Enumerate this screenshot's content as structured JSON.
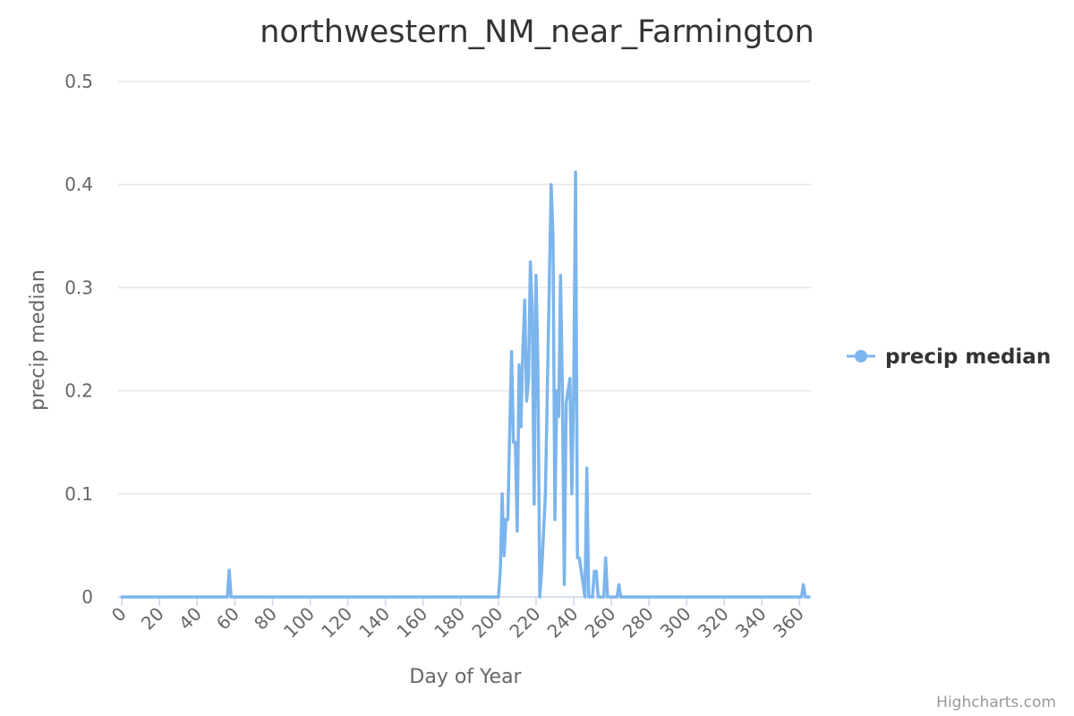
{
  "chart_data": {
    "type": "line",
    "title": "northwestern_NM_near_Farmington",
    "xlabel": "Day of Year",
    "ylabel": "precip median",
    "xlim": [
      -2,
      366
    ],
    "ylim": [
      0,
      0.5
    ],
    "x_ticks": [
      0,
      20,
      40,
      60,
      80,
      100,
      120,
      140,
      160,
      180,
      200,
      220,
      240,
      260,
      280,
      300,
      320,
      340,
      360
    ],
    "y_ticks": [
      0,
      0.1,
      0.2,
      0.3,
      0.4,
      0.5
    ],
    "x_tick_labels": [
      "0",
      "20",
      "40",
      "60",
      "80",
      "100",
      "120",
      "140",
      "160",
      "180",
      "200",
      "220",
      "240",
      "260",
      "280",
      "300",
      "320",
      "340",
      "360"
    ],
    "y_tick_labels": [
      "0",
      "0.1",
      "0.2",
      "0.3",
      "0.4",
      "0.5"
    ],
    "grid": true,
    "legend_position": "right",
    "series": [
      {
        "name": "precip median",
        "color": "#7cb5ec",
        "points": [
          [
            0,
            0
          ],
          [
            56,
            0
          ],
          [
            57,
            0.026
          ],
          [
            58,
            0
          ],
          [
            200,
            0
          ],
          [
            201,
            0.025
          ],
          [
            202,
            0.1
          ],
          [
            203,
            0.04
          ],
          [
            204,
            0.075
          ],
          [
            205,
            0.075
          ],
          [
            206,
            0.16
          ],
          [
            207,
            0.238
          ],
          [
            208,
            0.15
          ],
          [
            209,
            0.15
          ],
          [
            210,
            0.064
          ],
          [
            211,
            0.225
          ],
          [
            212,
            0.165
          ],
          [
            213,
            0.24
          ],
          [
            214,
            0.288
          ],
          [
            215,
            0.19
          ],
          [
            216,
            0.21
          ],
          [
            217,
            0.325
          ],
          [
            218,
            0.28
          ],
          [
            219,
            0.09
          ],
          [
            220,
            0.312
          ],
          [
            221,
            0.225
          ],
          [
            222,
            0
          ],
          [
            223,
            0.025
          ],
          [
            225,
            0.1
          ],
          [
            228,
            0.4
          ],
          [
            229,
            0.35
          ],
          [
            230,
            0.075
          ],
          [
            231,
            0.2
          ],
          [
            232,
            0.175
          ],
          [
            233,
            0.312
          ],
          [
            234,
            0.2
          ],
          [
            235,
            0.012
          ],
          [
            236,
            0.188
          ],
          [
            238,
            0.212
          ],
          [
            239,
            0.1
          ],
          [
            240,
            0.2
          ],
          [
            241,
            0.412
          ],
          [
            242,
            0.038
          ],
          [
            243,
            0.038
          ],
          [
            246,
            0
          ],
          [
            247,
            0.125
          ],
          [
            248,
            0
          ],
          [
            250,
            0
          ],
          [
            251,
            0.025
          ],
          [
            252,
            0.025
          ],
          [
            253,
            0
          ],
          [
            256,
            0
          ],
          [
            257,
            0.038
          ],
          [
            258,
            0
          ],
          [
            263,
            0
          ],
          [
            264,
            0.012
          ],
          [
            265,
            0
          ],
          [
            361,
            0
          ],
          [
            362,
            0.012
          ],
          [
            363,
            0
          ],
          [
            365,
            0
          ]
        ]
      }
    ]
  },
  "credits": "Highcharts.com"
}
